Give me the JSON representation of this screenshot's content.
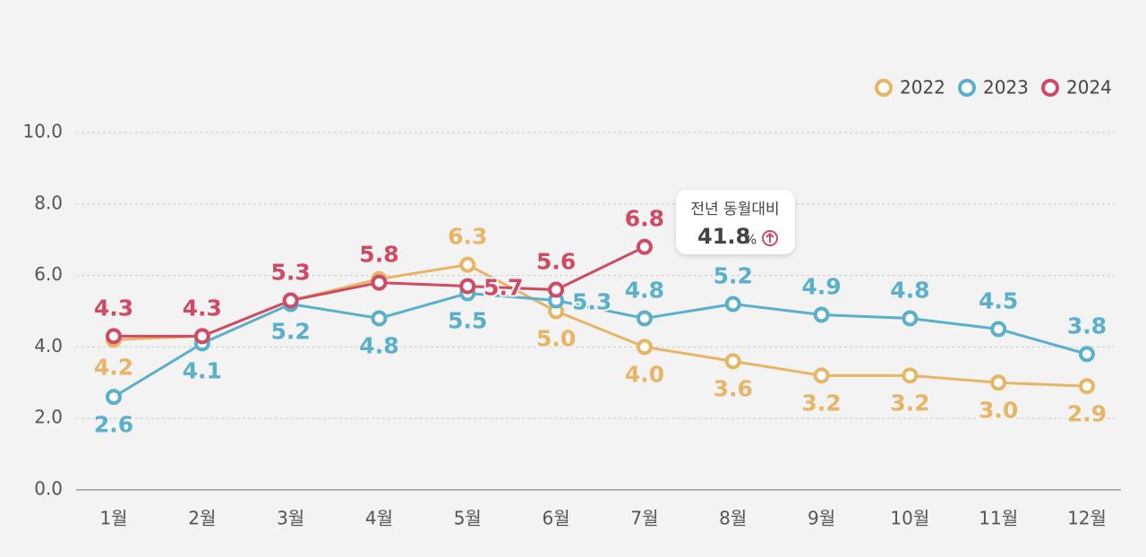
{
  "chart_data": {
    "type": "line",
    "categories": [
      "1월",
      "2월",
      "3월",
      "4월",
      "5월",
      "6월",
      "7월",
      "8월",
      "9월",
      "10월",
      "11월",
      "12월"
    ],
    "series": [
      {
        "name": "2022",
        "color": "#e8b566",
        "values": [
          4.2,
          4.3,
          5.3,
          5.9,
          6.3,
          5.0,
          4.0,
          3.6,
          3.2,
          3.2,
          3.0,
          2.9
        ],
        "value_labels": [
          "4.2",
          null,
          null,
          null,
          "6.3",
          "5.0",
          "4.0",
          "3.6",
          "3.2",
          "3.2",
          "3.0",
          "2.9"
        ]
      },
      {
        "name": "2023",
        "color": "#5aafcb",
        "values": [
          2.6,
          4.1,
          5.2,
          4.8,
          5.5,
          5.3,
          4.8,
          5.2,
          4.9,
          4.8,
          4.5,
          3.8
        ],
        "value_labels": [
          "2.6",
          "4.1",
          "5.2",
          "4.8",
          "5.5",
          "5.3",
          "4.8",
          "5.2",
          "4.9",
          "4.8",
          "4.5",
          "3.8"
        ]
      },
      {
        "name": "2024",
        "color": "#cf4a64",
        "values": [
          4.3,
          4.3,
          5.3,
          5.8,
          5.7,
          5.6,
          6.8,
          null,
          null,
          null,
          null,
          null
        ],
        "value_labels": [
          "4.3",
          "4.3",
          "5.3",
          "5.8",
          "5.7",
          "5.6",
          "6.8",
          null,
          null,
          null,
          null,
          null
        ]
      }
    ],
    "ylim": [
      0,
      10
    ],
    "yticks": [
      {
        "value": 0,
        "label": "0.0"
      },
      {
        "value": 2,
        "label": "2.0"
      },
      {
        "value": 4,
        "label": "4.0"
      },
      {
        "value": 6,
        "label": "6.0"
      },
      {
        "value": 8,
        "label": "8.0"
      },
      {
        "value": 10,
        "label": "10.0"
      }
    ],
    "grid": true,
    "legend": "top-right",
    "annotation": {
      "title": "전년 동월대비",
      "value": 41.8,
      "unit": "%"
    }
  }
}
